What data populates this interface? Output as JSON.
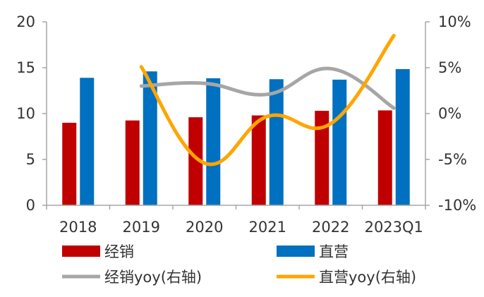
{
  "chart_data": {
    "type": "bar",
    "categories": [
      "2018",
      "2019",
      "2020",
      "2021",
      "2022",
      "2023Q1"
    ],
    "series": [
      {
        "name": "经销",
        "type": "bar",
        "axis": "left",
        "color": "#C00000",
        "values": [
          9.0,
          9.25,
          9.6,
          9.8,
          10.3,
          10.35
        ]
      },
      {
        "name": "直营",
        "type": "bar",
        "axis": "left",
        "color": "#0070C0",
        "values": [
          13.9,
          14.6,
          13.85,
          13.75,
          13.7,
          14.85
        ]
      },
      {
        "name": "经销yoy(右轴)",
        "type": "line",
        "axis": "right",
        "color": "#A6A6A6",
        "values": [
          null,
          3.0,
          3.3,
          2.1,
          4.9,
          0.6
        ]
      },
      {
        "name": "直营yoy(右轴)",
        "type": "line",
        "axis": "right",
        "color": "#FFA500",
        "values": [
          null,
          5.1,
          -5.4,
          -0.3,
          -1.1,
          8.5
        ]
      }
    ],
    "y_left": {
      "min": 0,
      "max": 20,
      "ticks": [
        0,
        5,
        10,
        15,
        20
      ],
      "labels": [
        "0",
        "5",
        "10",
        "15",
        "20"
      ]
    },
    "y_right": {
      "min": -10,
      "max": 10,
      "ticks": [
        -10,
        -5,
        0,
        5,
        10
      ],
      "labels": [
        "-10%",
        "-5%",
        "0%",
        "5%",
        "10%"
      ]
    },
    "grid": false,
    "legend_position": "bottom"
  }
}
